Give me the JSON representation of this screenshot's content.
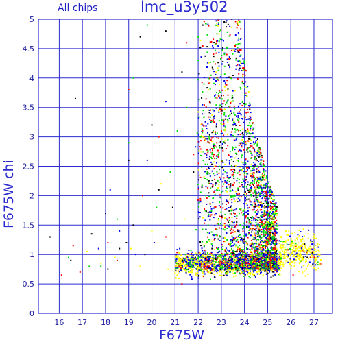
{
  "chart_data": {
    "type": "scatter",
    "title": "lmc_u3y502",
    "subtitle": "All chips",
    "xlabel": "F675W",
    "ylabel": "F675W chi",
    "xlim": [
      15.1,
      27.8
    ],
    "ylim": [
      0,
      5
    ],
    "xticks": [
      "16",
      "17",
      "18",
      "19",
      "20",
      "21",
      "22",
      "23",
      "24",
      "25",
      "26",
      "27"
    ],
    "yticks": [
      "0",
      "0.5",
      "1",
      "1.5",
      "2",
      "2.5",
      "3",
      "3.5",
      "4",
      "4.5",
      "5"
    ],
    "grid": true,
    "series_colors": [
      "#000000",
      "#ff0000",
      "#00dd00",
      "#0000ee",
      "#ffff00"
    ],
    "series": [
      {
        "color": "#000000",
        "points": [
          [
            15.6,
            1.3
          ],
          [
            16.5,
            0.9
          ],
          [
            16.7,
            3.65
          ],
          [
            17.4,
            1.35
          ],
          [
            18.0,
            1.7
          ],
          [
            18.1,
            0.75
          ],
          [
            18.6,
            1.1
          ],
          [
            18.9,
            1.2
          ],
          [
            19.0,
            2.6
          ],
          [
            19.2,
            1.5
          ],
          [
            19.5,
            4.7
          ],
          [
            19.7,
            1.0
          ],
          [
            20.0,
            3.2
          ],
          [
            20.3,
            2.1
          ],
          [
            20.6,
            4.8
          ],
          [
            20.9,
            1.8
          ],
          [
            21.3,
            4.1
          ],
          [
            21.8,
            2.4
          ],
          [
            22.2,
            4.9
          ],
          [
            22.6,
            1.1
          ],
          [
            23.0,
            3.7
          ],
          [
            23.4,
            2.2
          ]
        ]
      },
      {
        "color": "#ff0000",
        "points": [
          [
            16.1,
            0.65
          ],
          [
            16.6,
            1.15
          ],
          [
            16.9,
            0.7
          ],
          [
            18.1,
            1.2
          ],
          [
            18.5,
            0.9
          ],
          [
            19.0,
            3.8
          ],
          [
            19.6,
            2.0
          ],
          [
            20.3,
            3.0
          ],
          [
            20.6,
            1.3
          ],
          [
            21.3,
            0.5
          ],
          [
            21.5,
            4.6
          ],
          [
            21.8,
            2.7
          ],
          [
            26.1,
            0.65
          ]
        ]
      },
      {
        "color": "#00dd00",
        "points": [
          [
            16.4,
            0.95
          ],
          [
            17.3,
            0.8
          ],
          [
            17.8,
            0.8
          ],
          [
            18.5,
            1.6
          ],
          [
            19.0,
            2.9
          ],
          [
            19.2,
            4.0
          ],
          [
            19.8,
            4.9
          ],
          [
            20.2,
            1.8
          ],
          [
            20.8,
            2.4
          ],
          [
            21.1,
            3.1
          ],
          [
            21.5,
            3.5
          ],
          [
            22.0,
            4.3
          ],
          [
            22.4,
            1.2
          ],
          [
            22.8,
            2.1
          ]
        ]
      },
      {
        "color": "#0000ee",
        "points": [
          [
            17.7,
            1.1
          ],
          [
            18.2,
            2.1
          ],
          [
            18.6,
            1.4
          ],
          [
            19.3,
            1.0
          ],
          [
            19.8,
            2.6
          ],
          [
            20.1,
            1.2
          ],
          [
            20.6,
            3.6
          ],
          [
            21.2,
            1.1
          ],
          [
            21.7,
            1.0
          ],
          [
            22.1,
            1.9
          ],
          [
            22.5,
            3.3
          ],
          [
            22.9,
            4.2
          ]
        ]
      },
      {
        "color": "#ffff00",
        "points": [
          [
            17.2,
            1.05
          ],
          [
            17.8,
            0.85
          ],
          [
            18.4,
            0.95
          ],
          [
            19.1,
            1.1
          ],
          [
            19.5,
            0.8
          ],
          [
            20.0,
            1.4
          ],
          [
            20.4,
            2.2
          ],
          [
            20.7,
            0.75
          ],
          [
            21.4,
            1.6
          ],
          [
            21.9,
            0.65
          ],
          [
            22.2,
            3.0
          ],
          [
            22.7,
            2.5
          ]
        ]
      }
    ],
    "cloud_note_free": true,
    "clouds": [
      {
        "x": [
          21.0,
          25.6
        ],
        "y_band": [
          0.55,
          1.15
        ],
        "count": 1400,
        "weights": [
          0.06,
          0.08,
          0.12,
          0.3,
          0.44
        ]
      },
      {
        "x": [
          21.8,
          25.4
        ],
        "y_upper_at_x": [
          [
            21.8,
            5.0
          ],
          [
            23.8,
            5.0
          ],
          [
            24.3,
            3.4
          ],
          [
            25.0,
            2.3
          ],
          [
            25.7,
            1.5
          ]
        ],
        "count": 2600,
        "weights": [
          0.1,
          0.22,
          0.3,
          0.28,
          0.1
        ]
      },
      {
        "x": [
          25.5,
          27.3
        ],
        "y_band": [
          0.6,
          1.5
        ],
        "count": 350,
        "weights": [
          0.02,
          0.03,
          0.05,
          0.1,
          0.8
        ]
      },
      {
        "x": [
          22.0,
          23.2
        ],
        "y_band": [
          0.6,
          5.0
        ],
        "count": 220,
        "weights": [
          0.1,
          0.3,
          0.3,
          0.2,
          0.1
        ]
      }
    ]
  }
}
